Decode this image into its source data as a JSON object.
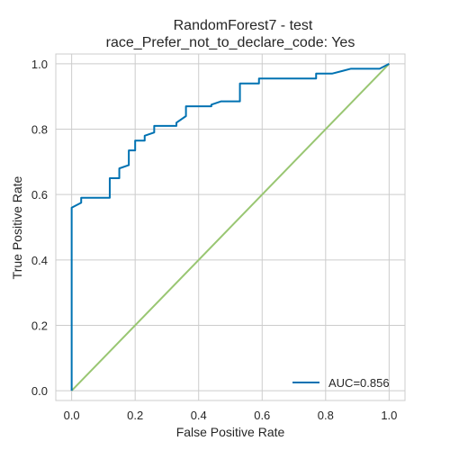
{
  "chart_data": {
    "type": "line",
    "title": "RandomForest7 - test",
    "subtitle": "race_Prefer_not_to_declare_code: Yes",
    "xlabel": "False Positive Rate",
    "ylabel": "True Positive Rate",
    "xlim": [
      -0.05,
      1.05
    ],
    "ylim": [
      -0.03,
      1.03
    ],
    "xticks": [
      0.0,
      0.2,
      0.4,
      0.6,
      0.8,
      1.0
    ],
    "yticks": [
      0.0,
      0.2,
      0.4,
      0.6,
      0.8,
      1.0
    ],
    "xtick_labels": [
      "0.0",
      "0.2",
      "0.4",
      "0.6",
      "0.8",
      "1.0"
    ],
    "ytick_labels": [
      "0.0",
      "0.2",
      "0.4",
      "0.6",
      "0.8",
      "1.0"
    ],
    "grid": true,
    "legend_position": "bottom-right",
    "series": [
      {
        "name": "AUC=0.856",
        "color": "#0072b2",
        "x": [
          0.0,
          0.0,
          0.03,
          0.03,
          0.12,
          0.12,
          0.15,
          0.15,
          0.18,
          0.18,
          0.2,
          0.2,
          0.23,
          0.23,
          0.26,
          0.26,
          0.33,
          0.33,
          0.36,
          0.36,
          0.44,
          0.44,
          0.47,
          0.47,
          0.53,
          0.53,
          0.59,
          0.59,
          0.77,
          0.77,
          0.82,
          0.82,
          0.88,
          0.88,
          0.97,
          1.0
        ],
        "y": [
          0.0,
          0.56,
          0.575,
          0.59,
          0.59,
          0.65,
          0.65,
          0.68,
          0.69,
          0.735,
          0.735,
          0.765,
          0.765,
          0.78,
          0.79,
          0.81,
          0.81,
          0.82,
          0.84,
          0.87,
          0.87,
          0.875,
          0.885,
          0.885,
          0.885,
          0.94,
          0.94,
          0.955,
          0.955,
          0.97,
          0.97,
          0.97,
          0.985,
          0.985,
          0.985,
          1.0
        ]
      },
      {
        "name": "",
        "color": "#99c672",
        "x": [
          0.0,
          1.0
        ],
        "y": [
          0.0,
          1.0
        ]
      }
    ]
  },
  "colors": {
    "grid": "#cccccc",
    "axes_edge": "#cccccc",
    "text": "#262626",
    "background": "#ffffff"
  }
}
